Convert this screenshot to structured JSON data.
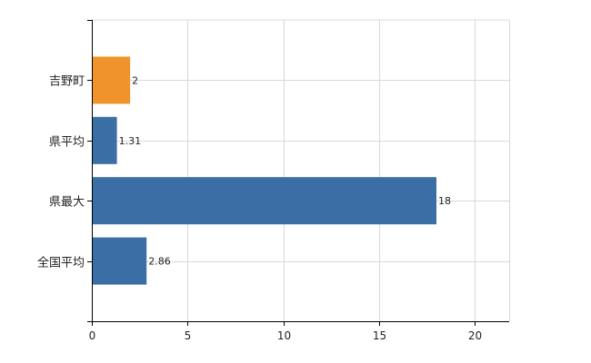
{
  "chart_data": {
    "type": "bar",
    "orientation": "horizontal",
    "categories": [
      "吉野町",
      "県平均",
      "県最大",
      "全国平均"
    ],
    "values": [
      2,
      1.31,
      18,
      2.86
    ],
    "value_labels": [
      "2",
      "1.31",
      "18",
      "2.86"
    ],
    "colors": [
      "#f0932b",
      "#3a6ea5",
      "#3a6ea5",
      "#3a6ea5"
    ],
    "xlim": [
      0,
      21.8
    ],
    "xticks": [
      0,
      5,
      10,
      15,
      20
    ],
    "xtick_labels": [
      "0",
      "5",
      "10",
      "15",
      "20"
    ],
    "grid": true,
    "title": "",
    "xlabel": "",
    "ylabel": ""
  }
}
